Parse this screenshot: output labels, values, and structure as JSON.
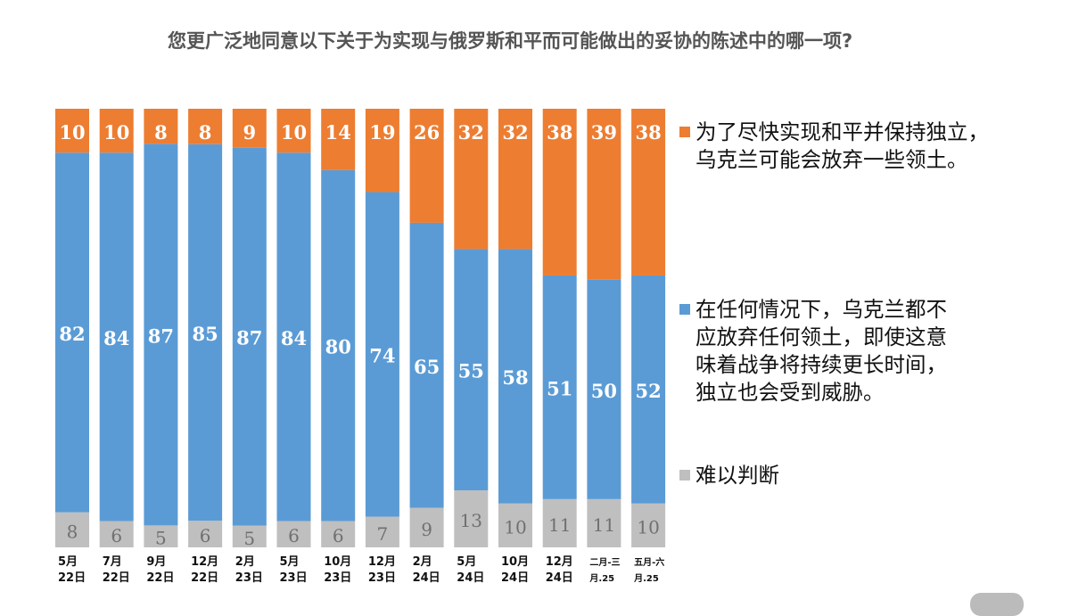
{
  "title": "您更广泛地同意以下关于为实现与俄罗斯和平而可能做出的妥协的陈述中的哪一项?",
  "chart_data": {
    "type": "bar",
    "stacked": true,
    "categories": [
      [
        "5月",
        "22日"
      ],
      [
        "7月",
        "22日"
      ],
      [
        "9月",
        "22日"
      ],
      [
        "12月",
        "22日"
      ],
      [
        "2月",
        "23日"
      ],
      [
        "5月",
        "23日"
      ],
      [
        "10月",
        "23日"
      ],
      [
        "12月",
        "23日"
      ],
      [
        "2月",
        "24日"
      ],
      [
        "5月",
        "24日"
      ],
      [
        "10月",
        "24日"
      ],
      [
        "12月",
        "24日"
      ],
      [
        "二月-三",
        "月.25"
      ],
      [
        "五月-六",
        "月.25"
      ]
    ],
    "series": [
      {
        "name": "难以判断",
        "color": "#bfbfbf",
        "label_color": "#707070",
        "values": [
          8,
          6,
          5,
          6,
          5,
          6,
          6,
          7,
          9,
          13,
          10,
          11,
          11,
          10
        ]
      },
      {
        "name": "在任何情况下，乌克兰都不应放弃任何领土，即使这意味着战争将持续更长时间，独立也会受到威胁。",
        "color": "#5b9bd5",
        "label_color": "#ffffff",
        "values": [
          82,
          84,
          87,
          85,
          87,
          84,
          80,
          74,
          65,
          55,
          58,
          51,
          50,
          52
        ]
      },
      {
        "name": "为了尽快实现和平并保持独立，乌克兰可能会放弃一些领土。",
        "color": "#ed7d31",
        "label_color": "#ffffff",
        "values": [
          10,
          10,
          8,
          8,
          9,
          10,
          14,
          19,
          26,
          32,
          32,
          38,
          39,
          38
        ]
      }
    ],
    "ylim": [
      0,
      100
    ],
    "legend_position": "right",
    "grid": false
  },
  "legend": [
    {
      "swatch_color": "#ed7d31",
      "text": "为了尽快实现和平并保持独立，\n乌克兰可能会放弃一些领土。"
    },
    {
      "swatch_color": "#5b9bd5",
      "text": "在任何情况下，乌克兰都不\n应放弃任何领土，即使这意\n味着战争将持续更长时间，\n独立也会受到威胁。"
    },
    {
      "swatch_color": "#bfbfbf",
      "text": "难以判断"
    }
  ]
}
